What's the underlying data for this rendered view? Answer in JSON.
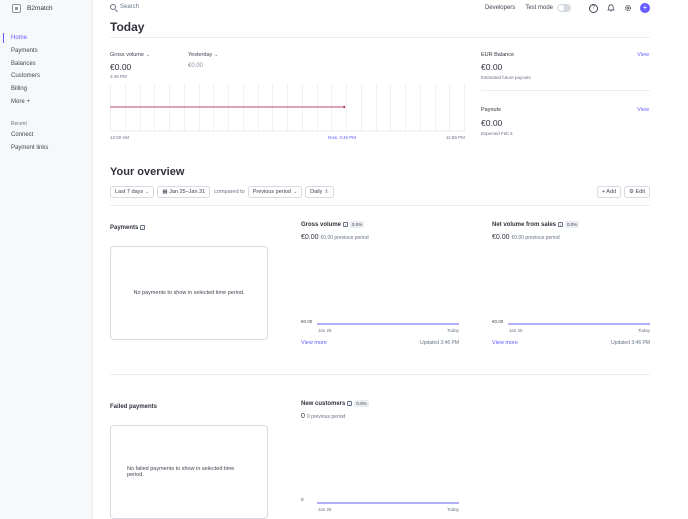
{
  "sidebar": {
    "account_name": "B2match",
    "items": [
      {
        "label": "Home",
        "active": true
      },
      {
        "label": "Payments"
      },
      {
        "label": "Balances"
      },
      {
        "label": "Customers"
      },
      {
        "label": "Billing"
      },
      {
        "label": "More"
      }
    ],
    "recent_label": "Recent",
    "recent_items": [
      {
        "label": "Connect"
      },
      {
        "label": "Payment links"
      }
    ]
  },
  "topbar": {
    "search_placeholder": "Search",
    "developers_label": "Developers",
    "test_mode_label": "Test mode"
  },
  "today": {
    "title": "Today",
    "gross_volume_label": "Gross volume",
    "gross_volume_value": "€0.00",
    "gross_volume_time": "3:46 PM",
    "yesterday_label": "Yesterday",
    "yesterday_value": "€0.00",
    "chart": {
      "x_labels": [
        "12:00 AM",
        "Now, 3:46 PM",
        "11:59 PM"
      ],
      "now_fraction": 0.66
    },
    "eur_balance": {
      "title": "EUR Balance",
      "view_label": "View",
      "value": "€0.00",
      "subtitle": "Estimated future payouts"
    },
    "payouts": {
      "title": "Payouts",
      "view_label": "View",
      "value": "€0.00",
      "subtitle": "Expected Feb 3"
    }
  },
  "overview": {
    "title": "Your overview",
    "range_label": "Last 7 days",
    "date_range": "Jan 25–Jan 31",
    "compared_to": "compared to",
    "comparison": "Previous period",
    "interval": "Daily",
    "add_label": "Add",
    "edit_label": "Edit",
    "payments": {
      "title": "Payments",
      "empty_text": "No payments to show in selected time period."
    },
    "failed_payments": {
      "title": "Failed payments",
      "empty_text": "No failed payments to show in selected time period."
    },
    "gross_volume": {
      "title": "Gross volume",
      "badge": "0.0%",
      "value": "€0.00",
      "previous": "€0.00 previous period",
      "y_label": "€0.00",
      "x_start": "Jan 25",
      "x_end": "Today",
      "view_more": "View more",
      "updated": "Updated 3:46 PM"
    },
    "net_volume": {
      "title": "Net volume from sales",
      "badge": "0.0%",
      "value": "€0.00",
      "previous": "€0.00 previous period",
      "y_label": "€0.00",
      "x_start": "Jan 25",
      "x_end": "Today",
      "view_more": "View more",
      "updated": "Updated 3:46 PM"
    },
    "new_customers": {
      "title": "New customers",
      "badge": "0.0%",
      "value": "0",
      "previous": "0 previous period",
      "y_label": "0",
      "x_start": "Jan 25",
      "x_end": "Today"
    }
  },
  "colors": {
    "accent": "#635bff",
    "today_line": "#b94a6c",
    "text": "#30313d",
    "muted": "#687385"
  }
}
